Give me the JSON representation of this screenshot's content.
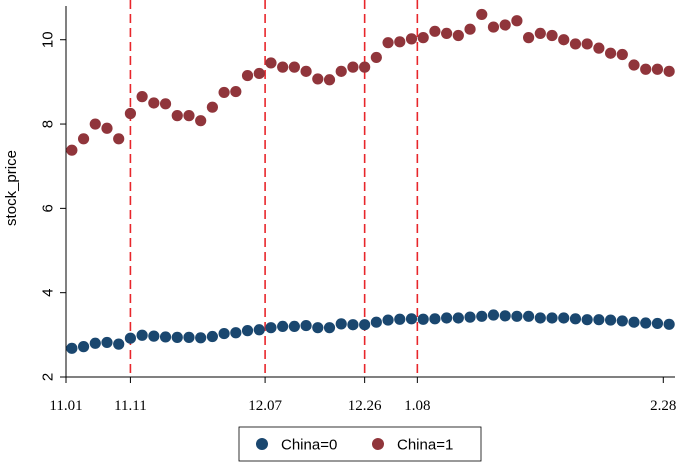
{
  "chart_data": {
    "type": "scatter",
    "ylabel": "stock_price",
    "xlabel": "",
    "ylim": [
      2,
      10.8
    ],
    "yticks": [
      2,
      4,
      6,
      8,
      10
    ],
    "xlim": [
      0,
      52
    ],
    "xticks": [
      {
        "x": 0,
        "label": "11.01"
      },
      {
        "x": 5.5,
        "label": "11.11"
      },
      {
        "x": 17,
        "label": "12.07"
      },
      {
        "x": 25.5,
        "label": "12.26"
      },
      {
        "x": 30,
        "label": "1.08"
      },
      {
        "x": 51,
        "label": "2.28"
      }
    ],
    "vlines": [
      5.5,
      17,
      25.5,
      30
    ],
    "vline_color": "#e8262b",
    "grid": false,
    "legend": {
      "placement": "bottom"
    },
    "series": [
      {
        "name": "China=0",
        "color": "#1a476f",
        "x": [
          0.5,
          1.5,
          2.5,
          3.5,
          4.5,
          5.5,
          6.5,
          7.5,
          8.5,
          9.5,
          10.5,
          11.5,
          12.5,
          13.5,
          14.5,
          15.5,
          16.5,
          17.5,
          18.5,
          19.5,
          20.5,
          21.5,
          22.5,
          23.5,
          24.5,
          25.5,
          26.5,
          27.5,
          28.5,
          29.5,
          30.5,
          31.5,
          32.5,
          33.5,
          34.5,
          35.5,
          36.5,
          37.5,
          38.5,
          39.5,
          40.5,
          41.5,
          42.5,
          43.5,
          44.5,
          45.5,
          46.5,
          47.5,
          48.5,
          49.5,
          50.5,
          51.5
        ],
        "values": [
          2.68,
          2.72,
          2.8,
          2.82,
          2.78,
          2.92,
          2.99,
          2.97,
          2.95,
          2.94,
          2.94,
          2.93,
          2.96,
          3.03,
          3.05,
          3.1,
          3.12,
          3.17,
          3.2,
          3.2,
          3.22,
          3.17,
          3.17,
          3.26,
          3.24,
          3.24,
          3.3,
          3.35,
          3.37,
          3.38,
          3.37,
          3.38,
          3.4,
          3.4,
          3.42,
          3.44,
          3.47,
          3.45,
          3.44,
          3.44,
          3.4,
          3.4,
          3.4,
          3.38,
          3.36,
          3.36,
          3.35,
          3.33,
          3.3,
          3.28,
          3.27,
          3.25
        ]
      },
      {
        "name": "China=1",
        "color": "#90353b",
        "x": [
          0.5,
          1.5,
          2.5,
          3.5,
          4.5,
          5.5,
          6.5,
          7.5,
          8.5,
          9.5,
          10.5,
          11.5,
          12.5,
          13.5,
          14.5,
          15.5,
          16.5,
          17.5,
          18.5,
          19.5,
          20.5,
          21.5,
          22.5,
          23.5,
          24.5,
          25.5,
          26.5,
          27.5,
          28.5,
          29.5,
          30.5,
          31.5,
          32.5,
          33.5,
          34.5,
          35.5,
          36.5,
          37.5,
          38.5,
          39.5,
          40.5,
          41.5,
          42.5,
          43.5,
          44.5,
          45.5,
          46.5,
          47.5,
          48.5,
          49.5,
          50.5,
          51.5
        ],
        "values": [
          7.38,
          7.65,
          8.0,
          7.9,
          7.65,
          8.25,
          8.65,
          8.5,
          8.48,
          8.2,
          8.2,
          8.08,
          8.4,
          8.75,
          8.77,
          9.15,
          9.2,
          9.45,
          9.35,
          9.35,
          9.25,
          9.07,
          9.05,
          9.25,
          9.35,
          9.35,
          9.58,
          9.93,
          9.95,
          10.02,
          10.05,
          10.2,
          10.15,
          10.1,
          10.25,
          10.6,
          10.3,
          10.35,
          10.45,
          10.05,
          10.15,
          10.1,
          10.0,
          9.9,
          9.9,
          9.8,
          9.68,
          9.65,
          9.4,
          9.3,
          9.3,
          9.25
        ]
      }
    ]
  }
}
